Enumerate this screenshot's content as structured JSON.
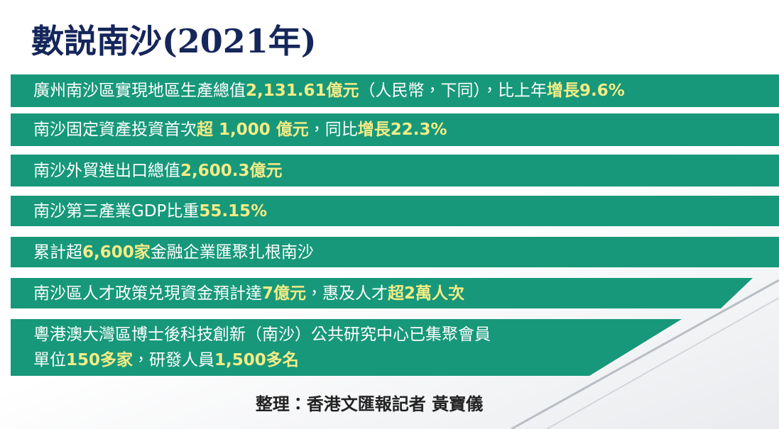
{
  "title": "數説南沙(2021年)",
  "items": [
    {
      "lines": [
        [
          {
            "text": "廣州南沙區實現地區生產總值"
          },
          {
            "text": "2,131.61億元",
            "emphasis": true
          },
          {
            "text": "（人民幣，下同），比上年"
          },
          {
            "text": "增長9.6%",
            "emphasis": true
          }
        ]
      ]
    },
    {
      "lines": [
        [
          {
            "text": "南沙固定資產投資首次"
          },
          {
            "text": "超 1,000 億元",
            "emphasis": true
          },
          {
            "text": "，同比"
          },
          {
            "text": "增長22.3%",
            "emphasis": true
          }
        ]
      ]
    },
    {
      "lines": [
        [
          {
            "text": "南沙外貿進出口總值"
          },
          {
            "text": "2,600.3億元",
            "emphasis": true
          }
        ]
      ]
    },
    {
      "lines": [
        [
          {
            "text": "南沙第三產業GDP比重"
          },
          {
            "text": "55.15%",
            "emphasis": true
          }
        ]
      ]
    },
    {
      "lines": [
        [
          {
            "text": "累計超"
          },
          {
            "text": "6,600家",
            "emphasis": true
          },
          {
            "text": "金融企業匯聚扎根南沙"
          }
        ]
      ]
    },
    {
      "lines": [
        [
          {
            "text": "南沙區人才政策兑現資金預計達"
          },
          {
            "text": "7億元",
            "emphasis": true
          },
          {
            "text": "，惠及人才"
          },
          {
            "text": "超2萬人次",
            "emphasis": true
          }
        ]
      ]
    },
    {
      "lines": [
        [
          {
            "text": "粵港澳大灣區博士後科技創新（南沙）公共研究中心已集聚會員"
          }
        ],
        [
          {
            "text": "單位"
          },
          {
            "text": "150多家",
            "emphasis": true
          },
          {
            "text": "，研發人員"
          },
          {
            "text": "1,500多名",
            "emphasis": true
          }
        ]
      ]
    }
  ],
  "footer": "整理：香港文匯報記者 黃寶儀"
}
